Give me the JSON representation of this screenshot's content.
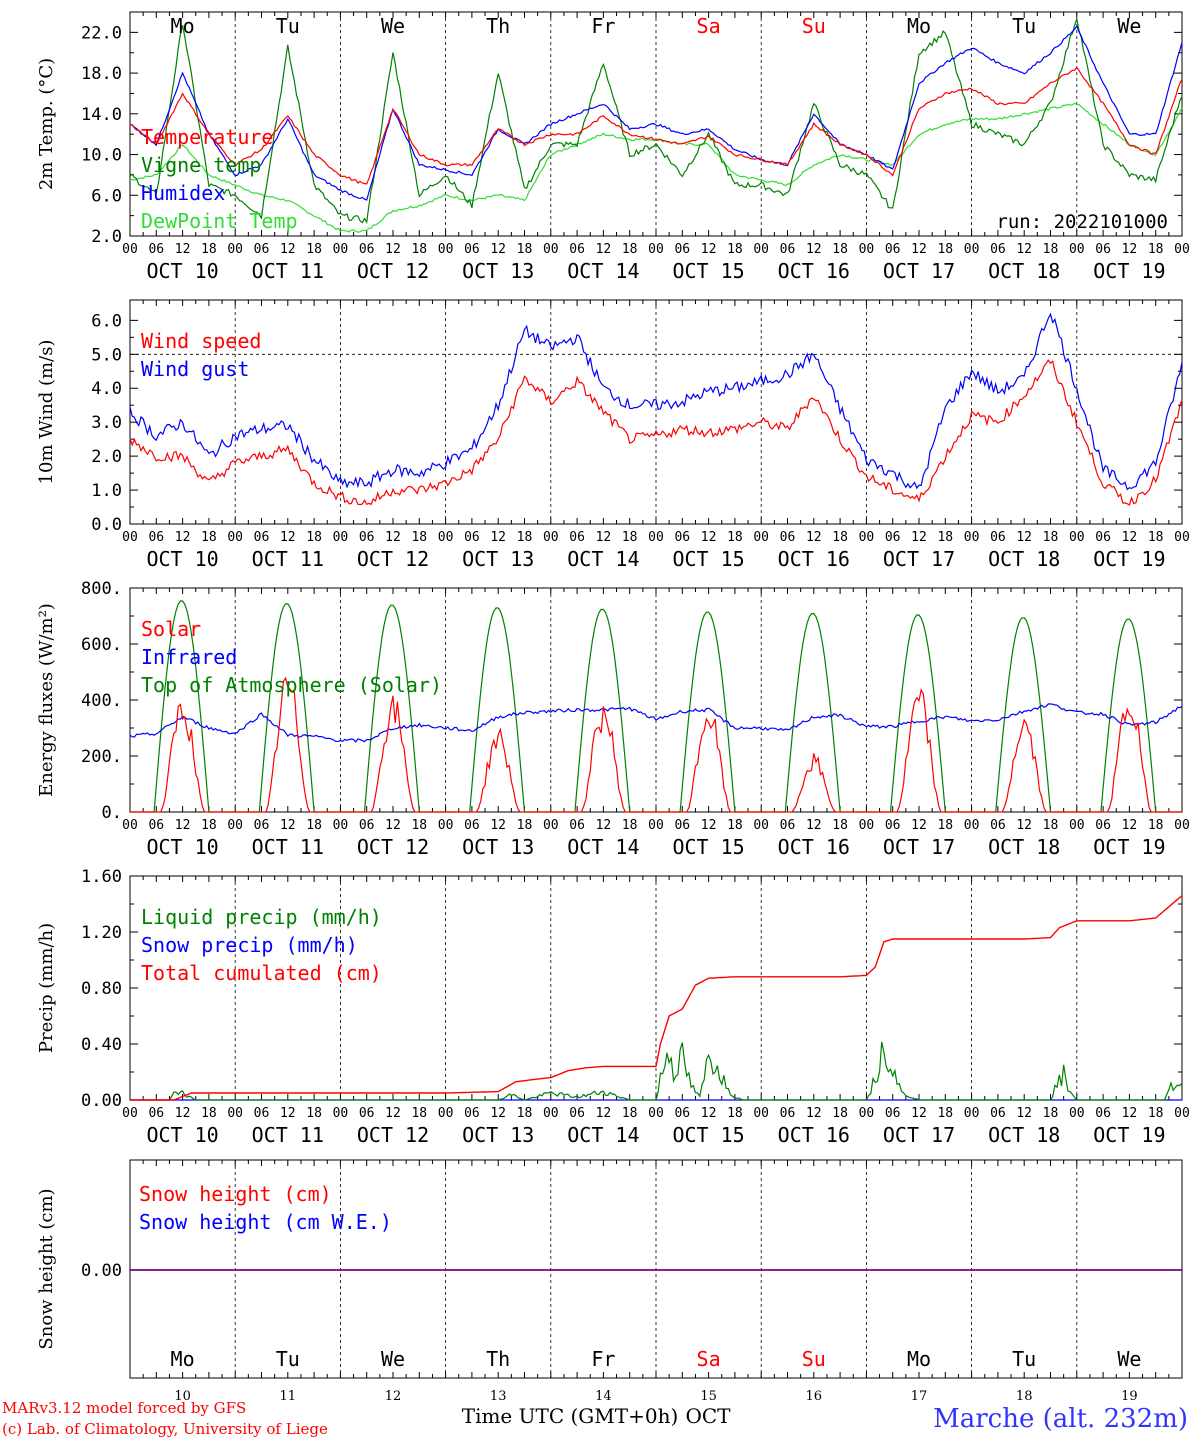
{
  "colors": {
    "red": "#ff0000",
    "green": "#008000",
    "blue": "#0000ff",
    "lightgreen": "#33dd33",
    "purple": "#800080",
    "title_blue": "#3333ff"
  },
  "chart_data": [
    {
      "type": "line",
      "panel": "temperature",
      "ylabel": "2m Temp. (°C)",
      "ylim": [
        2,
        24
      ],
      "yticks": [
        "22.0",
        "18.0",
        "14.0",
        "10.0",
        "6.0",
        "2.0"
      ],
      "day_abbrevs": [
        "Mo",
        "Tu",
        "We",
        "Th",
        "Fr",
        "Sa",
        "Su",
        "Mo",
        "Tu",
        "We"
      ],
      "weekend_days": [
        5,
        6
      ],
      "run_label": "run: 2022101000",
      "x_unit": "hours since Oct 10 00 UTC",
      "series": [
        {
          "name": "Temperature",
          "color": "red",
          "x": [
            0,
            6,
            12,
            18,
            24,
            30,
            36,
            42,
            48,
            54,
            60,
            66,
            72,
            78,
            84,
            90,
            96,
            102,
            108,
            114,
            120,
            126,
            132,
            138,
            144,
            150,
            156,
            162,
            168,
            174,
            180,
            186,
            192,
            198,
            204,
            210,
            216,
            222,
            228,
            234,
            240
          ],
          "y": [
            13,
            11,
            16,
            12,
            9,
            10.5,
            13.8,
            10,
            8,
            7,
            14.5,
            10,
            9,
            9,
            12.5,
            11,
            12,
            12,
            13.8,
            12,
            11.5,
            11,
            11.8,
            10,
            9.5,
            9,
            13,
            11,
            10,
            8,
            14.5,
            16,
            16.5,
            15,
            15,
            17,
            18.5,
            15,
            11,
            10,
            17.5
          ]
        },
        {
          "name": "Vigne temp",
          "color": "green",
          "x": [
            0,
            6,
            12,
            18,
            24,
            30,
            36,
            42,
            48,
            54,
            60,
            66,
            72,
            78,
            84,
            90,
            96,
            102,
            108,
            114,
            120,
            126,
            132,
            138,
            144,
            150,
            156,
            162,
            168,
            174,
            180,
            186,
            192,
            198,
            204,
            210,
            216,
            222,
            228,
            234,
            240
          ],
          "y": [
            8,
            6,
            23,
            7,
            6,
            4,
            20.5,
            7,
            4,
            3.5,
            20,
            6,
            8,
            5,
            18,
            6.5,
            11,
            11,
            19,
            10,
            11,
            8,
            12,
            7,
            7,
            6,
            15,
            9,
            8,
            4.5,
            20,
            22,
            13,
            12,
            11,
            15,
            23.5,
            11,
            8,
            7.5,
            16
          ]
        },
        {
          "name": "Humidex",
          "color": "blue",
          "x": [
            0,
            6,
            12,
            18,
            24,
            30,
            36,
            42,
            48,
            54,
            60,
            66,
            72,
            78,
            84,
            90,
            96,
            102,
            108,
            114,
            120,
            126,
            132,
            138,
            144,
            150,
            156,
            162,
            168,
            174,
            180,
            186,
            192,
            198,
            204,
            210,
            216,
            222,
            228,
            234,
            240
          ],
          "y": [
            13,
            11,
            18,
            12,
            8,
            9,
            13.5,
            8,
            6.5,
            5.5,
            14.5,
            9,
            8.5,
            8,
            12.5,
            11,
            13,
            14,
            15,
            12.5,
            13,
            12,
            12.5,
            10.5,
            9.5,
            9,
            14,
            11,
            10,
            8.5,
            17,
            19,
            20.5,
            19,
            18,
            20,
            22.5,
            17,
            12,
            12,
            21
          ]
        },
        {
          "name": "DewPoint Temp",
          "color": "lightgreen",
          "x": [
            0,
            6,
            12,
            18,
            24,
            30,
            36,
            42,
            48,
            54,
            60,
            66,
            72,
            78,
            84,
            90,
            96,
            102,
            108,
            114,
            120,
            126,
            132,
            138,
            144,
            150,
            156,
            162,
            168,
            174,
            180,
            186,
            192,
            198,
            204,
            210,
            216,
            222,
            228,
            234,
            240
          ],
          "y": [
            7.5,
            8,
            11,
            8,
            7,
            6,
            5.5,
            4,
            2.5,
            2.5,
            4.5,
            5,
            6,
            5.5,
            6,
            5.5,
            10,
            11,
            12,
            11.5,
            11.5,
            11,
            11,
            8,
            7.5,
            7,
            9,
            10,
            9.5,
            9,
            12,
            13,
            13.5,
            13.5,
            14,
            14.5,
            15,
            13,
            11,
            10,
            14.5
          ]
        }
      ]
    },
    {
      "type": "line",
      "panel": "wind",
      "ylabel": "10m Wind (m/s)",
      "ylim": [
        0,
        6.6
      ],
      "yticks": [
        "6.0",
        "5.0",
        "4.0",
        "3.0",
        "2.0",
        "1.0",
        "0.0"
      ],
      "ref_line": 5.0,
      "series": [
        {
          "name": "Wind speed",
          "color": "red",
          "x": [
            0,
            6,
            12,
            18,
            24,
            30,
            36,
            42,
            48,
            54,
            60,
            66,
            72,
            78,
            84,
            90,
            96,
            102,
            108,
            114,
            120,
            126,
            132,
            138,
            144,
            150,
            156,
            162,
            168,
            174,
            180,
            186,
            192,
            198,
            204,
            210,
            216,
            222,
            228,
            234,
            240
          ],
          "y": [
            2.5,
            2,
            2,
            1.2,
            1.8,
            2,
            2.2,
            1.2,
            0.8,
            0.6,
            1,
            1,
            1.2,
            1.6,
            2.5,
            4.3,
            3.6,
            4.2,
            3.3,
            2.5,
            2.6,
            2.8,
            2.7,
            2.8,
            3,
            2.8,
            3.8,
            2.5,
            1.4,
            1,
            0.7,
            2,
            3.2,
            3,
            3.8,
            4.8,
            3,
            1.2,
            0.6,
            1.3,
            3.6
          ]
        },
        {
          "name": "Wind gust",
          "color": "blue",
          "x": [
            0,
            6,
            12,
            18,
            24,
            30,
            36,
            42,
            48,
            54,
            60,
            66,
            72,
            78,
            84,
            90,
            96,
            102,
            108,
            114,
            120,
            126,
            132,
            138,
            144,
            150,
            156,
            162,
            168,
            174,
            180,
            186,
            192,
            198,
            204,
            210,
            216,
            222,
            228,
            234,
            240
          ],
          "y": [
            3.3,
            2.6,
            3,
            2,
            2.6,
            2.8,
            2.9,
            1.9,
            1.2,
            1.2,
            1.6,
            1.5,
            1.8,
            2.2,
            3.5,
            5.7,
            5.2,
            5.5,
            4,
            3.5,
            3.5,
            3.6,
            3.9,
            4,
            4.2,
            4.4,
            5,
            3.4,
            1.9,
            1.5,
            1,
            3.4,
            4.5,
            3.9,
            4.3,
            6.3,
            4,
            1.6,
            1.1,
            1.8,
            4.7
          ]
        }
      ]
    },
    {
      "type": "line",
      "panel": "energy",
      "ylabel": "Energy fluxes (W/m²)",
      "ylim": [
        0,
        800
      ],
      "yticks": [
        "800.",
        "600.",
        "400.",
        "200.",
        "0."
      ],
      "series": [
        {
          "name": "Solar",
          "color": "red",
          "peaks": [
            430,
            520,
            430,
            310,
            410,
            400,
            210,
            460,
            360,
            450
          ]
        },
        {
          "name": "Infrared",
          "color": "blue",
          "x": [
            0,
            6,
            12,
            18,
            24,
            30,
            36,
            42,
            48,
            54,
            60,
            66,
            72,
            78,
            84,
            90,
            96,
            102,
            108,
            114,
            120,
            126,
            132,
            138,
            144,
            150,
            156,
            162,
            168,
            174,
            180,
            186,
            192,
            198,
            204,
            210,
            216,
            222,
            228,
            234,
            240
          ],
          "y": [
            270,
            280,
            340,
            300,
            280,
            350,
            275,
            270,
            255,
            255,
            300,
            310,
            300,
            290,
            340,
            355,
            360,
            365,
            365,
            370,
            330,
            360,
            365,
            300,
            300,
            290,
            340,
            345,
            305,
            305,
            325,
            340,
            325,
            330,
            360,
            385,
            355,
            350,
            310,
            320,
            380
          ]
        },
        {
          "name": "Top of Atmosphere (Solar)",
          "color": "green",
          "peaks": [
            755,
            745,
            740,
            730,
            725,
            715,
            710,
            705,
            695,
            690
          ]
        }
      ]
    },
    {
      "type": "line",
      "panel": "precip",
      "ylabel": "Precip (mm/h)",
      "ylim": [
        0,
        1.6
      ],
      "yticks": [
        "1.60",
        "1.20",
        "0.80",
        "0.40",
        "0.00"
      ],
      "series": [
        {
          "name": "Liquid precip (mm/h)",
          "color": "green",
          "x": [
            0,
            9,
            10,
            12,
            13,
            15,
            18,
            24,
            72,
            84,
            87,
            90,
            96,
            102,
            108,
            114,
            120,
            121,
            123,
            124,
            126,
            128,
            130,
            132,
            134,
            136,
            138,
            140,
            168,
            170,
            172,
            174,
            176,
            180,
            210,
            211,
            213,
            214,
            216,
            236,
            237,
            238,
            239,
            240
          ],
          "y": [
            0,
            0,
            0.05,
            0.08,
            0.03,
            0,
            0,
            0,
            0,
            0,
            0.04,
            0,
            0.05,
            0.02,
            0.06,
            0,
            0,
            0.15,
            0.38,
            0.2,
            0.3,
            0.1,
            0.02,
            0.3,
            0.25,
            0.1,
            0.02,
            0,
            0,
            0.15,
            0.42,
            0.25,
            0.05,
            0,
            0,
            0.08,
            0.18,
            0.1,
            0,
            0,
            0.08,
            0.1,
            0.09,
            0.1
          ]
        },
        {
          "name": "Snow precip (mm/h)",
          "color": "blue",
          "x": [
            0,
            240
          ],
          "y": [
            0,
            0
          ]
        },
        {
          "name": "Total cumulated (cm)",
          "color": "red",
          "x": [
            0,
            10,
            14,
            24,
            48,
            72,
            84,
            88,
            93,
            96,
            100,
            104,
            108,
            116,
            120,
            121,
            123,
            126,
            129,
            132,
            138,
            144,
            162,
            168,
            170,
            172,
            174,
            192,
            204,
            210,
            212,
            216,
            228,
            234,
            240
          ],
          "y": [
            0,
            0,
            0.05,
            0.05,
            0.05,
            0.05,
            0.06,
            0.13,
            0.15,
            0.16,
            0.21,
            0.23,
            0.24,
            0.24,
            0.24,
            0.4,
            0.6,
            0.65,
            0.82,
            0.87,
            0.88,
            0.88,
            0.88,
            0.89,
            0.95,
            1.13,
            1.15,
            1.15,
            1.15,
            1.16,
            1.23,
            1.28,
            1.28,
            1.3,
            1.46
          ]
        }
      ]
    },
    {
      "type": "line",
      "panel": "snow",
      "ylabel": "Snow height (cm)",
      "yticks": [
        "0.00"
      ],
      "series": [
        {
          "name": "Snow height (cm)",
          "color": "red",
          "x": [
            0,
            240
          ],
          "y": [
            0,
            0
          ]
        },
        {
          "name": "Snow height (cm W.E.)",
          "color": "blue",
          "x": [
            0,
            240
          ],
          "y": [
            0,
            0
          ]
        }
      ]
    }
  ],
  "xaxis": {
    "hour_labels": [
      "00",
      "06",
      "12",
      "18"
    ],
    "date_labels": [
      "OCT 10",
      "OCT 11",
      "OCT 12",
      "OCT 13",
      "OCT 14",
      "OCT 15",
      "OCT 16",
      "OCT 17",
      "OCT 18",
      "OCT 19"
    ],
    "day_numbers": [
      "10",
      "11",
      "12",
      "13",
      "14",
      "15",
      "16",
      "17",
      "18",
      "19"
    ],
    "month": "OCT",
    "time_label": "Time UTC (GMT+0h)"
  },
  "footer": {
    "credit_line1": "MARv3.12 model forced by GFS",
    "credit_line2": "(c) Lab. of Climatology, University of Liege",
    "station": "Marche (alt. 232m)"
  }
}
